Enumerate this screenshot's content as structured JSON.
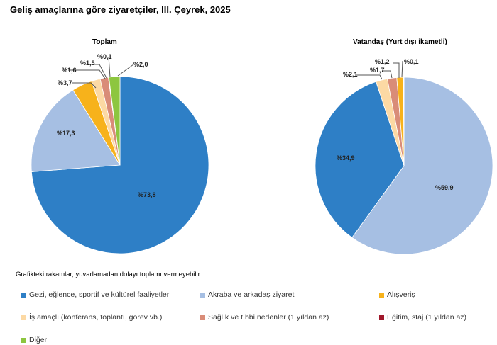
{
  "title": "Geliş amaçlarına göre ziyaretçiler, III. Çeyrek, 2025",
  "note": "Grafikteki rakamlar, yuvarlamadan dolayı toplamı vermeyebilir.",
  "chart_data": [
    {
      "type": "pie",
      "title": "Toplam",
      "slices": [
        {
          "name": "Gezi, eğlence, sportif ve kültürel faaliyetler",
          "value": 73.8,
          "label": "%73,8",
          "color": "#2E7FC6"
        },
        {
          "name": "Akraba ve arkadaş ziyareti",
          "value": 17.3,
          "label": "%17,3",
          "color": "#A6BFE3"
        },
        {
          "name": "Alışveriş",
          "value": 3.7,
          "label": "%3,7",
          "color": "#F7B21B"
        },
        {
          "name": "İş amaçlı (konferans, toplantı, görev vb.)",
          "value": 1.6,
          "label": "%1,6",
          "color": "#FCD9A4"
        },
        {
          "name": "Sağlık ve tıbbi nedenler (1 yıldan az)",
          "value": 1.5,
          "label": "%1,5",
          "color": "#D98C78"
        },
        {
          "name": "Eğitim, staj (1 yıldan az)",
          "value": 0.1,
          "label": "%0,1",
          "color": "#A0182B"
        },
        {
          "name": "Diğer",
          "value": 2.0,
          "label": "%2,0",
          "color": "#8DC63F"
        }
      ]
    },
    {
      "type": "pie",
      "title": "Vatandaş (Yurt dışı ikametli)",
      "slices": [
        {
          "name": "Akraba ve arkadaş ziyareti",
          "value": 59.9,
          "label": "%59,9",
          "color": "#A6BFE3"
        },
        {
          "name": "Gezi, eğlence, sportif ve kültürel faaliyetler",
          "value": 34.9,
          "label": "%34,9",
          "color": "#2E7FC6"
        },
        {
          "name": "İş amaçlı (konferans, toplantı, görev vb.)",
          "value": 2.1,
          "label": "%2,1",
          "color": "#FCD9A4"
        },
        {
          "name": "Sağlık ve tıbbi nedenler (1 yıldan az)",
          "value": 1.7,
          "label": "%1,7",
          "color": "#D98C78"
        },
        {
          "name": "Alışveriş",
          "value": 1.2,
          "label": "%1,2",
          "color": "#F7B21B"
        },
        {
          "name": "Eğitim, staj (1 yıldan az)",
          "value": 0.1,
          "label": "%0,1",
          "color": "#A0182B"
        }
      ]
    }
  ],
  "legend": [
    {
      "label": "Gezi, eğlence, sportif ve kültürel faaliyetler",
      "color": "#2E7FC6"
    },
    {
      "label": "Akraba ve arkadaş ziyareti",
      "color": "#A6BFE3"
    },
    {
      "label": "Alışveriş",
      "color": "#F7B21B"
    },
    {
      "label": "İş amaçlı (konferans, toplantı, görev vb.)",
      "color": "#FCD9A4"
    },
    {
      "label": "Sağlık ve tıbbi nedenler (1 yıldan az)",
      "color": "#D98C78"
    },
    {
      "label": "Eğitim, staj (1 yıldan az)",
      "color": "#A0182B"
    },
    {
      "label": "Diğer",
      "color": "#8DC63F"
    }
  ]
}
